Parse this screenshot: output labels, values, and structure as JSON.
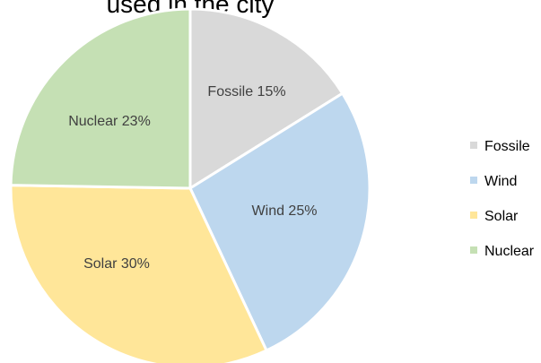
{
  "chart_data": {
    "type": "pie",
    "title": "used in the city",
    "categories": [
      "Fossile",
      "Wind",
      "Solar",
      "Nuclear"
    ],
    "values": [
      15,
      25,
      30,
      23
    ],
    "slice_labels": [
      "Fossile  15%",
      "Wind 25%",
      "Solar  30%",
      "Nuclear 23%"
    ],
    "colors": [
      "#d9d9d9",
      "#bdd7ee",
      "#ffe699",
      "#c5e0b4"
    ],
    "legend": {
      "position": "right",
      "items": [
        "Fossile",
        "Wind",
        "Solar",
        "Nuclear"
      ]
    }
  }
}
